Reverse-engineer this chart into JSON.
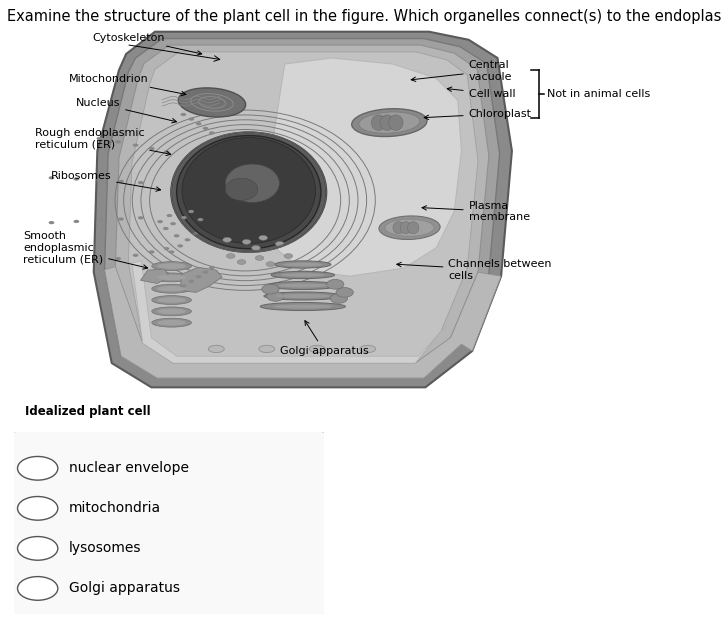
{
  "title": "Examine the structure of the plant cell in the figure. Which organelles connect(s) to the endoplasmic reticulum?",
  "title_fontsize": 10.5,
  "subtitle": "Idealized plant cell",
  "subtitle_fontsize": 8.5,
  "options": [
    "nuclear envelope",
    "mitochondria",
    "lysosomes",
    "Golgi apparatus"
  ],
  "bg_color": "#ffffff",
  "text_color": "#000000",
  "label_fontsize": 8,
  "option_fontsize": 10
}
